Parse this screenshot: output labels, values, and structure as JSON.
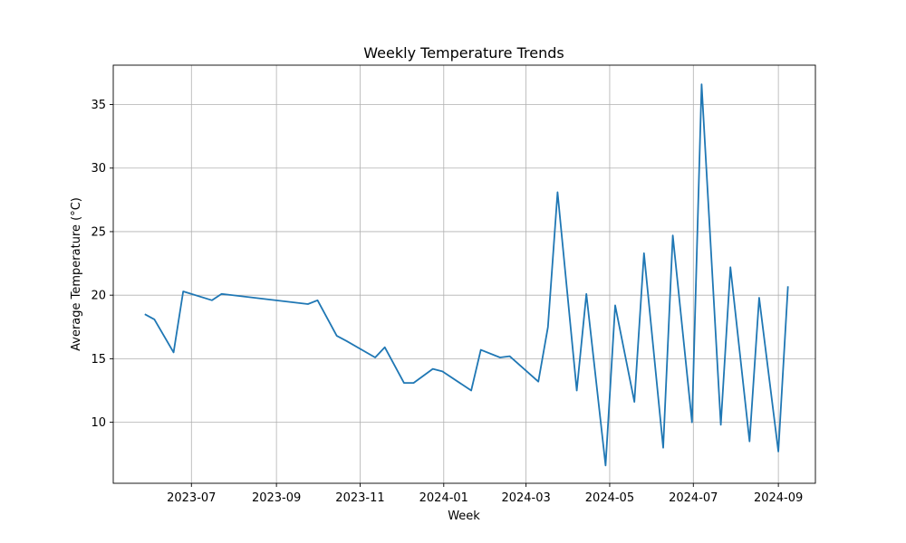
{
  "chart_data": {
    "type": "line",
    "title": "Weekly Temperature Trends",
    "xlabel": "Week",
    "ylabel": "Average Temperature (°C)",
    "grid": true,
    "series_color": "#1f77b4",
    "xlim": [
      "2023-05-05",
      "2024-09-28"
    ],
    "ylim": [
      5.2,
      38.1
    ],
    "x_ticks": [
      "2023-07",
      "2023-09",
      "2023-11",
      "2024-01",
      "2024-03",
      "2024-05",
      "2024-07",
      "2024-09"
    ],
    "y_ticks": [
      10,
      15,
      20,
      25,
      30,
      35
    ],
    "series": [
      {
        "points": [
          {
            "x": "2023-05-28",
            "y": 18.5
          },
          {
            "x": "2023-06-04",
            "y": 18.1
          },
          {
            "x": "2023-06-18",
            "y": 15.5
          },
          {
            "x": "2023-06-25",
            "y": 20.3
          },
          {
            "x": "2023-07-16",
            "y": 19.6
          },
          {
            "x": "2023-07-23",
            "y": 20.1
          },
          {
            "x": "2023-09-24",
            "y": 19.3
          },
          {
            "x": "2023-10-01",
            "y": 19.6
          },
          {
            "x": "2023-10-15",
            "y": 16.8
          },
          {
            "x": "2023-10-22",
            "y": 16.4
          },
          {
            "x": "2023-11-12",
            "y": 15.1
          },
          {
            "x": "2023-11-19",
            "y": 15.9
          },
          {
            "x": "2023-12-03",
            "y": 13.1
          },
          {
            "x": "2023-12-10",
            "y": 13.1
          },
          {
            "x": "2023-12-24",
            "y": 14.2
          },
          {
            "x": "2023-12-31",
            "y": 14.0
          },
          {
            "x": "2024-01-21",
            "y": 12.5
          },
          {
            "x": "2024-01-28",
            "y": 15.7
          },
          {
            "x": "2024-02-11",
            "y": 15.1
          },
          {
            "x": "2024-02-18",
            "y": 15.2
          },
          {
            "x": "2024-03-10",
            "y": 13.2
          },
          {
            "x": "2024-03-17",
            "y": 17.5
          },
          {
            "x": "2024-03-24",
            "y": 28.1
          },
          {
            "x": "2024-04-07",
            "y": 12.5
          },
          {
            "x": "2024-04-14",
            "y": 20.1
          },
          {
            "x": "2024-04-28",
            "y": 6.6
          },
          {
            "x": "2024-05-05",
            "y": 19.2
          },
          {
            "x": "2024-05-19",
            "y": 11.6
          },
          {
            "x": "2024-05-26",
            "y": 23.3
          },
          {
            "x": "2024-06-09",
            "y": 8.0
          },
          {
            "x": "2024-06-16",
            "y": 24.7
          },
          {
            "x": "2024-06-30",
            "y": 10.0
          },
          {
            "x": "2024-07-07",
            "y": 36.6
          },
          {
            "x": "2024-07-21",
            "y": 9.8
          },
          {
            "x": "2024-07-28",
            "y": 22.2
          },
          {
            "x": "2024-08-11",
            "y": 8.5
          },
          {
            "x": "2024-08-18",
            "y": 19.8
          },
          {
            "x": "2024-09-01",
            "y": 7.7
          },
          {
            "x": "2024-09-08",
            "y": 20.7
          }
        ]
      }
    ]
  }
}
